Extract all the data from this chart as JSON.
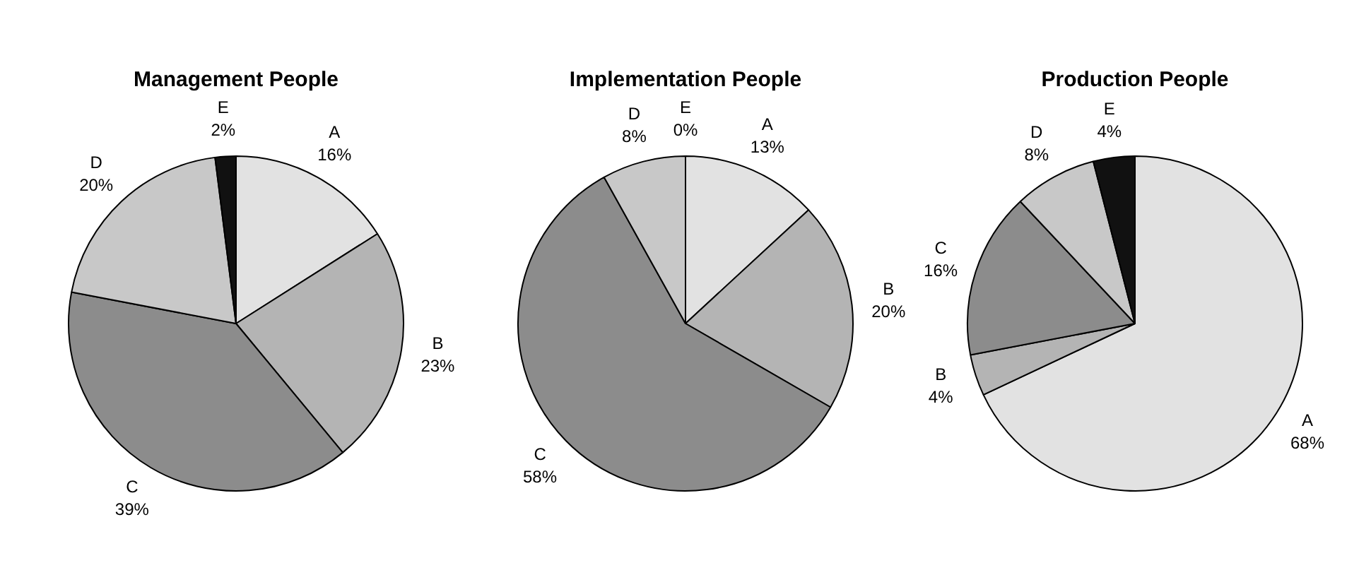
{
  "chart_data": [
    {
      "type": "pie",
      "title": "Management People",
      "categories": [
        "A",
        "B",
        "C",
        "D",
        "E"
      ],
      "values": [
        16,
        23,
        39,
        20,
        2
      ],
      "value_labels": [
        "16%",
        "23%",
        "39%",
        "20%",
        "2%"
      ],
      "colors": [
        "#e2e2e2",
        "#b4b4b4",
        "#8c8c8c",
        "#c8c8c8",
        "#111111"
      ],
      "legend": false
    },
    {
      "type": "pie",
      "title": "Implementation People",
      "categories": [
        "A",
        "B",
        "C",
        "D",
        "E"
      ],
      "values": [
        13,
        20,
        58,
        8,
        0
      ],
      "value_labels": [
        "13%",
        "20%",
        "58%",
        "8%",
        "0%"
      ],
      "colors": [
        "#e2e2e2",
        "#b4b4b4",
        "#8c8c8c",
        "#c8c8c8",
        "#111111"
      ],
      "legend": false
    },
    {
      "type": "pie",
      "title": "Production People",
      "categories": [
        "A",
        "B",
        "C",
        "D",
        "E"
      ],
      "values": [
        68,
        4,
        16,
        8,
        4
      ],
      "value_labels": [
        "68%",
        "4%",
        "16%",
        "8%",
        "4%"
      ],
      "colors": [
        "#e2e2e2",
        "#b4b4b4",
        "#8c8c8c",
        "#c8c8c8",
        "#111111"
      ],
      "legend": false
    }
  ]
}
